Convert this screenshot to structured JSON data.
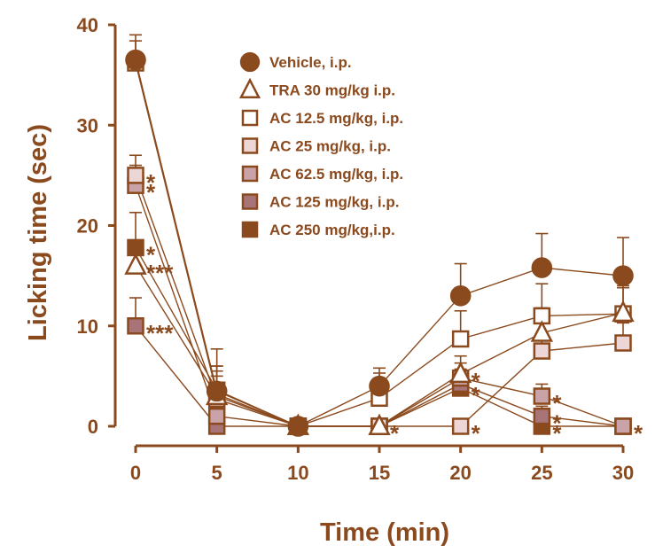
{
  "chart_data": {
    "type": "line",
    "title": "",
    "xlabel": "Time (min)",
    "ylabel": "Licking time (sec)",
    "x": [
      0,
      5,
      10,
      15,
      20,
      25,
      30
    ],
    "xticks": [
      "0",
      "5",
      "10",
      "15",
      "20",
      "25",
      "30"
    ],
    "yticks": [
      "0",
      "10",
      "20",
      "30",
      "40"
    ],
    "xlim": [
      0,
      30
    ],
    "ylim": [
      0,
      40
    ],
    "colors": {
      "primary": "#8b4a1e",
      "line": "#8b4a1e"
    },
    "legend_position": "top-right",
    "series": [
      {
        "name": "Vehicle, i.p.",
        "marker": "circle",
        "fill": "#8b4a1e",
        "values": [
          36.5,
          3.5,
          0,
          4.0,
          13.0,
          15.8,
          15.0
        ],
        "errors": [
          2.5,
          4.2,
          0,
          1.8,
          3.2,
          3.4,
          3.8
        ],
        "significance": [
          "",
          "",
          "",
          "",
          "",
          "",
          ""
        ]
      },
      {
        "name": "TRA 30 mg/kg i.p.",
        "marker": "triangle",
        "fill": "#ffffff",
        "values": [
          16.0,
          3.0,
          0,
          0.0,
          5.2,
          9.3,
          11.3
        ],
        "errors": [
          2.2,
          2.5,
          0,
          0.0,
          1.8,
          2.5,
          2.5
        ],
        "significance": [
          "***",
          "",
          "",
          "*",
          "*",
          "",
          ""
        ]
      },
      {
        "name": "AC 12.5 mg/kg, i.p.",
        "marker": "square",
        "fill": "#ffffff",
        "values": [
          36.2,
          3.2,
          0,
          2.8,
          8.7,
          11.0,
          11.2
        ],
        "errors": [
          2.2,
          2.8,
          0,
          2.5,
          2.8,
          3.2,
          2.8
        ],
        "significance": [
          "",
          "",
          "",
          "",
          "",
          "",
          ""
        ]
      },
      {
        "name": "AC 25 mg/kg, i.p.",
        "marker": "square",
        "fill": "#ecd6d6",
        "values": [
          25.0,
          2.7,
          0,
          0.0,
          0.0,
          7.5,
          8.3
        ],
        "errors": [
          2.0,
          2.3,
          0,
          0.0,
          0.0,
          1.8,
          2.0
        ],
        "significance": [
          "*",
          "",
          "",
          "",
          "*",
          "",
          ""
        ]
      },
      {
        "name": "AC 62.5 mg/kg, i.p.",
        "marker": "square",
        "fill": "#c9a3a8",
        "values": [
          24.0,
          1.0,
          0,
          0.0,
          4.8,
          3.0,
          0.0
        ],
        "errors": [
          2.0,
          1.8,
          0,
          0.0,
          1.5,
          1.2,
          0.0
        ],
        "significance": [
          "*",
          "",
          "",
          "",
          "",
          "*",
          "*"
        ]
      },
      {
        "name": "AC 125 mg/kg, i.p.",
        "marker": "square",
        "fill": "#a87478",
        "values": [
          10.0,
          0.0,
          0,
          0.0,
          4.2,
          1.0,
          0.0
        ],
        "errors": [
          2.8,
          0.0,
          0,
          0.0,
          1.5,
          1.0,
          0.0
        ],
        "significance": [
          "***",
          "",
          "",
          "",
          "",
          "*",
          ""
        ]
      },
      {
        "name": "AC 250 mg/kg,i.p.",
        "marker": "square",
        "fill": "#8b4a1e",
        "values": [
          17.8,
          3.6,
          0,
          0.0,
          3.8,
          0.0,
          0.0
        ],
        "errors": [
          3.5,
          2.4,
          0,
          0.0,
          1.5,
          0.0,
          0.0
        ],
        "significance": [
          "*",
          "",
          "",
          "",
          "*",
          "*",
          ""
        ]
      }
    ]
  }
}
